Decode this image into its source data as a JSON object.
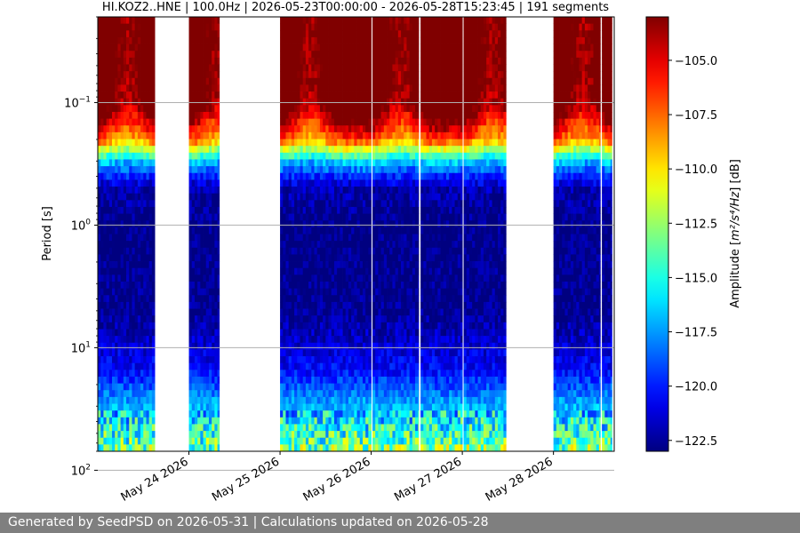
{
  "chart_data": {
    "type": "heatmap",
    "title": "HI.KOZ2..HNE | 100.0Hz | 2026-05-23T00:00:00 - 2026-05-28T15:23:45 | 191 segments",
    "ylabel": "Period [s]",
    "y_scale": "log",
    "y_inverted": true,
    "ylim": [
      0.02,
      70
    ],
    "y_ticks": [
      {
        "value": 0.1,
        "base": "10",
        "exp": "−1"
      },
      {
        "value": 1,
        "base": "10",
        "exp": "0"
      },
      {
        "value": 10,
        "base": "10",
        "exp": "1"
      },
      {
        "value": 100,
        "base": "10",
        "exp": "2"
      }
    ],
    "x_ticks": [
      "May 24 2026",
      "May 25 2026",
      "May 26 2026",
      "May 27 2026",
      "May 28 2026"
    ],
    "xlim": [
      "2026-05-23T00:00",
      "2026-05-28T16:00"
    ],
    "grid": "horizontal",
    "colorbar": {
      "label_prefix": "Amplitude [",
      "label_unit": "m²/s⁴/Hz",
      "label_suffix": "] [dB]",
      "range": [
        -123.0,
        -103.0
      ],
      "ticks": [
        -105.0,
        -107.5,
        -110.0,
        -112.5,
        -115.0,
        -117.5,
        -120.0,
        -122.5
      ],
      "tick_labels": [
        "−105.0",
        "−107.5",
        "−110.0",
        "−112.5",
        "−115.0",
        "−117.5",
        "−120.0",
        "−122.5"
      ],
      "colormap": "jet"
    },
    "data_segments": [
      {
        "start": "2026-05-23T00:00",
        "end": "2026-05-23T15:00"
      },
      {
        "start": "2026-05-24T00:00",
        "end": "2026-05-24T08:00"
      },
      {
        "start": "2026-05-25T00:00",
        "end": "2026-05-26T00:00"
      },
      {
        "start": "2026-05-26T00:20",
        "end": "2026-05-26T12:30"
      },
      {
        "start": "2026-05-26T13:00",
        "end": "2026-05-27T00:00"
      },
      {
        "start": "2026-05-27T00:20",
        "end": "2026-05-27T11:30"
      },
      {
        "start": "2026-05-28T00:00",
        "end": "2026-05-28T12:20"
      },
      {
        "start": "2026-05-28T12:45",
        "end": "2026-05-28T15:23"
      }
    ],
    "level_profile": [
      {
        "period": 0.02,
        "db": -103.5
      },
      {
        "period": 0.05,
        "db": -103.5
      },
      {
        "period": 0.1,
        "db": -104.0
      },
      {
        "period": 0.2,
        "db": -109.0
      },
      {
        "period": 0.3,
        "db": -117.0
      },
      {
        "period": 0.5,
        "db": -122.0
      },
      {
        "period": 1,
        "db": -123.0
      },
      {
        "period": 5,
        "db": -122.8
      },
      {
        "period": 15,
        "db": -120.5
      },
      {
        "period": 30,
        "db": -117.0
      },
      {
        "period": 60,
        "db": -114.0
      },
      {
        "period": 100,
        "db": -109.5
      },
      {
        "period": 200,
        "db": -106.0
      },
      {
        "period": 500,
        "db": -103.0
      }
    ]
  },
  "footer": {
    "text": "Generated by SeedPSD on 2026-05-31 | Calculations updated on 2026-05-28"
  }
}
